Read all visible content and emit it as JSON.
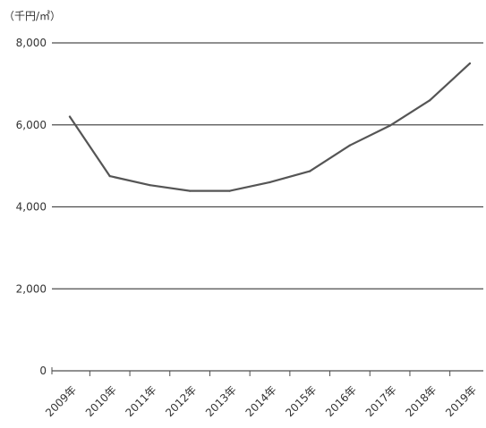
{
  "chart_data": {
    "type": "line",
    "title": "",
    "unit_label": "（千円/㎡）",
    "xlabel": "",
    "ylabel": "",
    "categories": [
      "2009年",
      "2010年",
      "2011年",
      "2012年",
      "2013年",
      "2014年",
      "2015年",
      "2016年",
      "2017年",
      "2018年",
      "2019年"
    ],
    "series": [
      {
        "values": [
          6200,
          4750,
          4530,
          4390,
          4390,
          4600,
          4870,
          5500,
          5980,
          6600,
          7500
        ]
      }
    ],
    "y_ticks": [
      0,
      2000,
      4000,
      6000,
      8000
    ],
    "y_tick_labels": [
      "0",
      "2,000",
      "4,000",
      "6,000",
      "8,000"
    ],
    "ylim": [
      0,
      8000
    ],
    "grid": "horizontal",
    "legend": "none"
  },
  "colors": {
    "line": "#555555",
    "grid": "#4d4d4d",
    "axis": "#4d4d4d",
    "text": "#333333"
  }
}
